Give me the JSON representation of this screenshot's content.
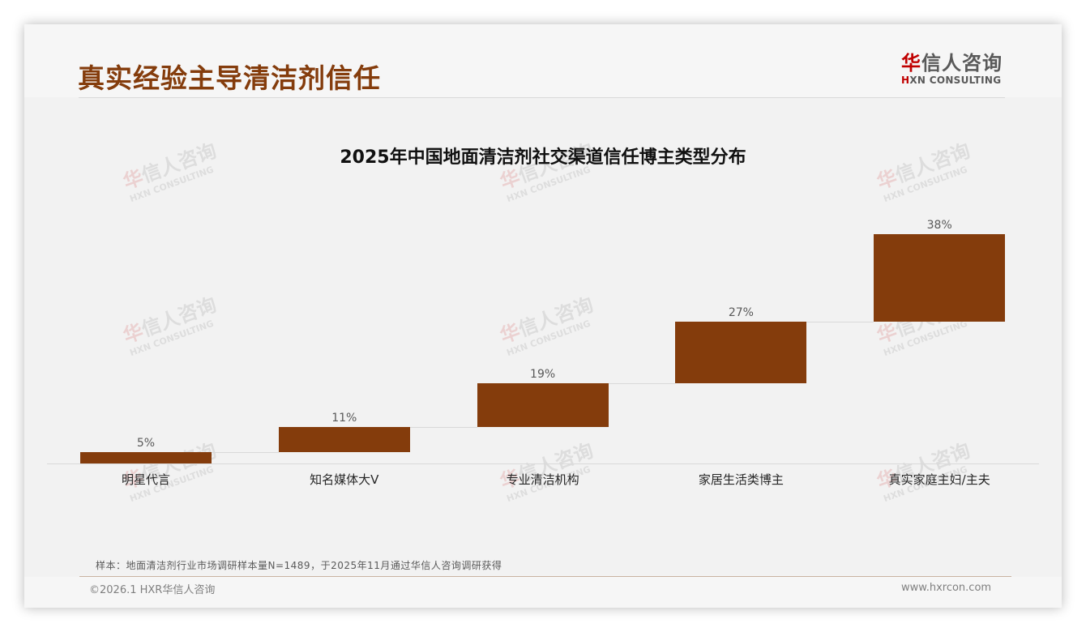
{
  "page": {
    "title": "真实经验主导清洁剂信任"
  },
  "logo": {
    "cn_first": "华",
    "cn_rest": "信人咨询",
    "en_first": "H",
    "en_rest": "XN CONSULTING"
  },
  "watermark": {
    "cn_first": "华",
    "cn_rest": "信人咨询",
    "en": "HXN CONSULTING"
  },
  "colors": {
    "accent": "#843c0c",
    "bar": "#843c0c",
    "logo_red": "#c00000",
    "background": "#f2f2f2"
  },
  "chart_data": {
    "type": "bar",
    "subtype": "waterfall",
    "title": "2025年中国地面清洁剂社交渠道信任博主类型分布",
    "xlabel": "",
    "ylabel": "",
    "categories": [
      "明星代言",
      "知名媒体大V",
      "专业清洁机构",
      "家居生活类博主",
      "真实家庭主妇/主夫"
    ],
    "values": [
      5,
      11,
      19,
      27,
      38
    ],
    "labels": [
      "5%",
      "11%",
      "19%",
      "27%",
      "38%"
    ],
    "unit": "%",
    "ylim": [
      0,
      100
    ],
    "grid": false,
    "legend": null,
    "connectors": true
  },
  "footer": {
    "note": "样本：地面清洁剂行业市场调研样本量N=1489，于2025年11月通过华信人咨询调研获得",
    "copyright": "©2026.1 HXR华信人咨询",
    "website": "www.hxrcon.com"
  }
}
